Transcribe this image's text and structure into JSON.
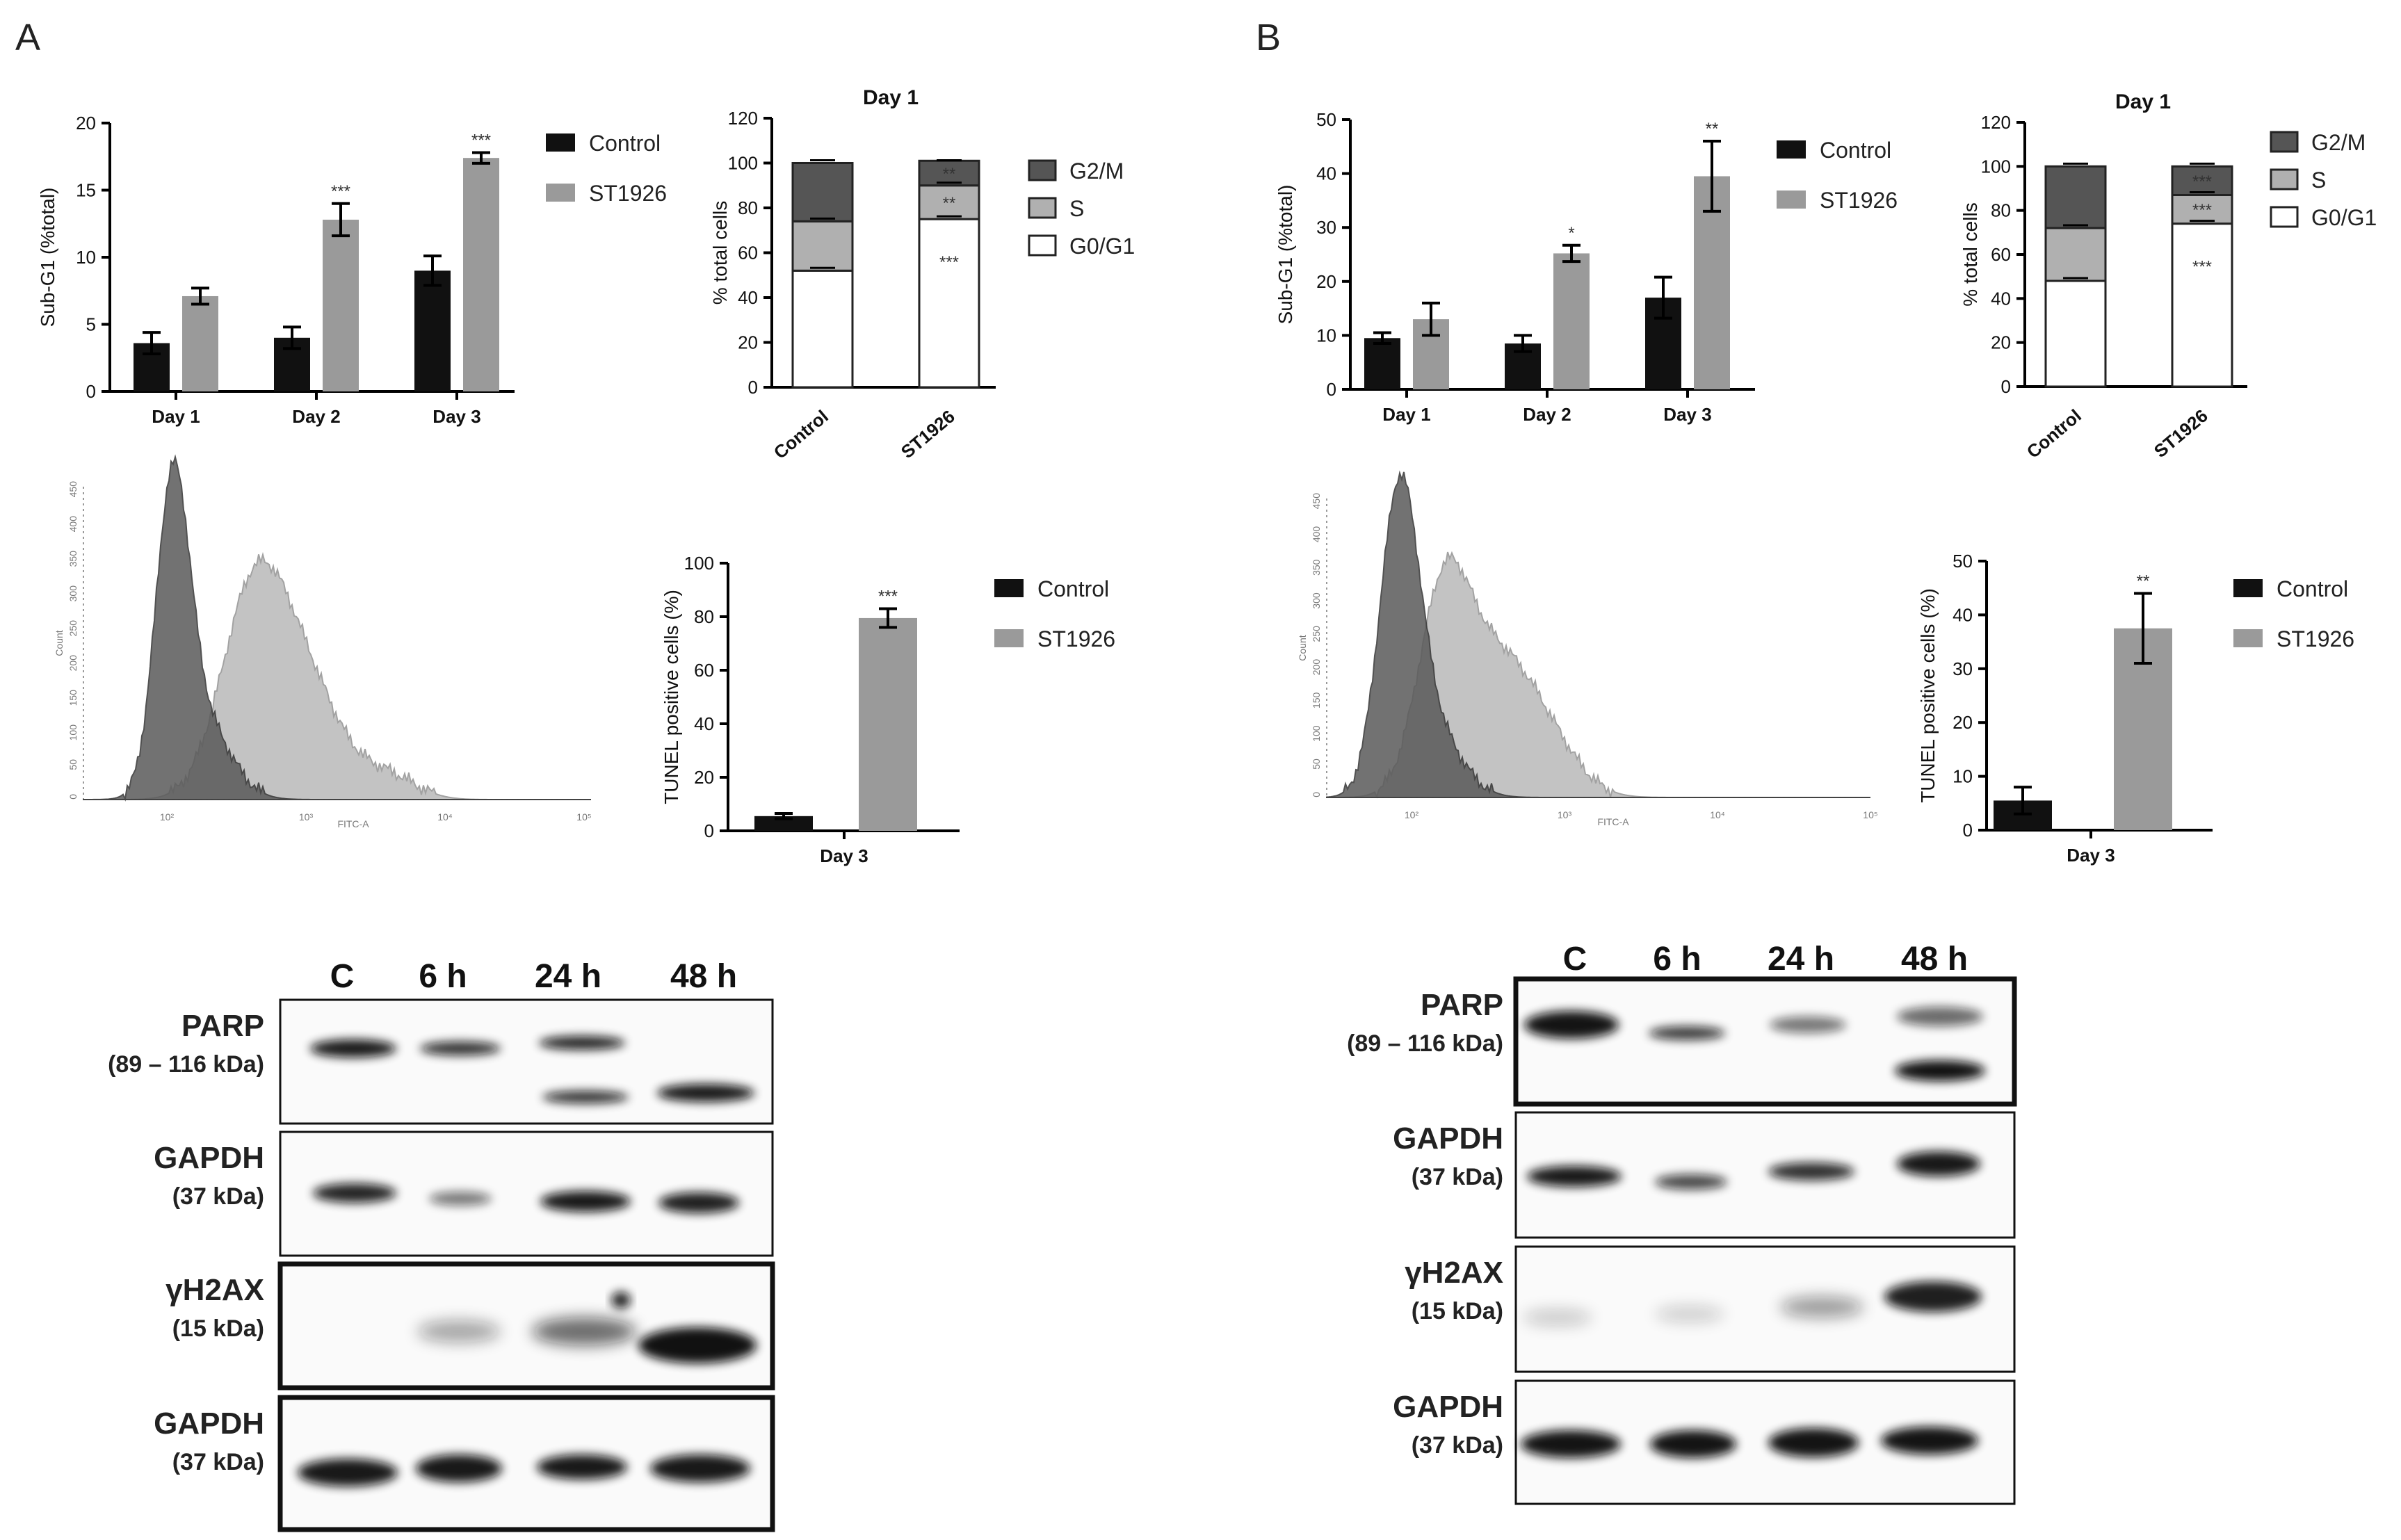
{
  "panel_labels": [
    "A",
    "B"
  ],
  "legend_groups": [
    "Control",
    "ST1926"
  ],
  "colors": {
    "control": "#111111",
    "st1926": "#9a9a9a",
    "g2m": "#555555",
    "s": "#b0b0b0",
    "g0g1": "#ffffff"
  },
  "chart_data": [
    {
      "id": "A_subG1",
      "type": "bar",
      "ylabel": "Sub-G1 (%total)",
      "ylim": [
        0,
        20
      ],
      "yticks": [
        0,
        5,
        10,
        15,
        20
      ],
      "categories": [
        "Day 1",
        "Day 2",
        "Day 3"
      ],
      "series": [
        {
          "name": "Control",
          "values": [
            3.6,
            4.0,
            9.0
          ],
          "errors": [
            0.8,
            0.8,
            1.1
          ]
        },
        {
          "name": "ST1926",
          "values": [
            7.1,
            12.8,
            17.4
          ],
          "errors": [
            0.6,
            1.2,
            0.4
          ]
        }
      ],
      "stars": [
        "",
        "***",
        "***"
      ]
    },
    {
      "id": "A_cellcycle",
      "type": "bar",
      "stacked": true,
      "title": "Day 1",
      "ylabel": "% total cells",
      "ylim": [
        0,
        120
      ],
      "yticks": [
        0,
        20,
        40,
        60,
        80,
        100,
        120
      ],
      "categories": [
        "Control",
        "ST1926"
      ],
      "series": [
        {
          "name": "G0/G1",
          "values": [
            52,
            75
          ],
          "stars": [
            "",
            "***"
          ]
        },
        {
          "name": "S",
          "values": [
            22,
            15
          ],
          "stars": [
            "",
            "**"
          ]
        },
        {
          "name": "G2/M",
          "values": [
            26,
            11
          ],
          "stars": [
            "",
            "**"
          ]
        }
      ]
    },
    {
      "id": "A_tunel",
      "type": "bar",
      "ylabel": "TUNEL positive cells (%)",
      "ylim": [
        0,
        100
      ],
      "yticks": [
        0,
        20,
        40,
        60,
        80,
        100
      ],
      "categories": [
        "Day 3"
      ],
      "series": [
        {
          "name": "Control",
          "values": [
            5.5
          ],
          "errors": [
            1.0
          ]
        },
        {
          "name": "ST1926",
          "values": [
            79.5
          ],
          "errors": [
            3.5
          ]
        }
      ],
      "stars": [
        "***"
      ]
    },
    {
      "id": "B_subG1",
      "type": "bar",
      "ylabel": "Sub-G1 (%total)",
      "ylim": [
        0,
        50
      ],
      "yticks": [
        0,
        10,
        20,
        30,
        40,
        50
      ],
      "categories": [
        "Day 1",
        "Day 2",
        "Day 3"
      ],
      "series": [
        {
          "name": "Control",
          "values": [
            9.5,
            8.5,
            17.0
          ],
          "errors": [
            1.0,
            1.5,
            3.8
          ]
        },
        {
          "name": "ST1926",
          "values": [
            13.0,
            25.2,
            39.5
          ],
          "errors": [
            3.0,
            1.5,
            6.5
          ]
        }
      ],
      "stars": [
        "",
        "*",
        "**"
      ]
    },
    {
      "id": "B_cellcycle",
      "type": "bar",
      "stacked": true,
      "title": "Day 1",
      "ylabel": "% total cells",
      "ylim": [
        0,
        120
      ],
      "yticks": [
        0,
        20,
        40,
        60,
        80,
        100,
        120
      ],
      "categories": [
        "Control",
        "ST1926"
      ],
      "series": [
        {
          "name": "G0/G1",
          "values": [
            48,
            74
          ],
          "stars": [
            "",
            "***"
          ]
        },
        {
          "name": "S",
          "values": [
            24,
            13
          ],
          "stars": [
            "",
            "***"
          ]
        },
        {
          "name": "G2/M",
          "values": [
            28,
            13
          ],
          "stars": [
            "",
            "***"
          ]
        }
      ]
    },
    {
      "id": "B_tunel",
      "type": "bar",
      "ylabel": "TUNEL positive cells (%)",
      "ylim": [
        0,
        50
      ],
      "yticks": [
        0,
        10,
        20,
        30,
        40,
        50
      ],
      "categories": [
        "Day 3"
      ],
      "series": [
        {
          "name": "Control",
          "values": [
            5.5
          ],
          "errors": [
            2.5
          ]
        },
        {
          "name": "ST1926",
          "values": [
            37.5
          ],
          "errors": [
            6.5
          ]
        }
      ],
      "stars": [
        "**"
      ]
    }
  ],
  "flow": {
    "ylabel": "Count",
    "xlabel": "FITC-A",
    "yticks": [
      "0",
      "50",
      "100",
      "150",
      "200",
      "250",
      "300",
      "350",
      "400",
      "450"
    ],
    "xticks": [
      "10²",
      "10³",
      "10⁴",
      "10⁵"
    ]
  },
  "blot": {
    "lanes": [
      "C",
      "6 h",
      "24 h",
      "48 h"
    ],
    "A_rows": [
      {
        "name": "PARP",
        "kda": "(89 – 116 kDa)"
      },
      {
        "name": "GAPDH",
        "kda": "(37 kDa)"
      },
      {
        "name": "γH2AX",
        "kda": "(15 kDa)"
      },
      {
        "name": "GAPDH",
        "kda": "(37 kDa)"
      }
    ],
    "B_rows": [
      {
        "name": "PARP",
        "kda": "(89 – 116 kDa)"
      },
      {
        "name": "GAPDH",
        "kda": "(37 kDa)"
      },
      {
        "name": "γH2AX",
        "kda": "(15 kDa)"
      },
      {
        "name": "GAPDH",
        "kda": "(37 kDa)"
      }
    ]
  }
}
